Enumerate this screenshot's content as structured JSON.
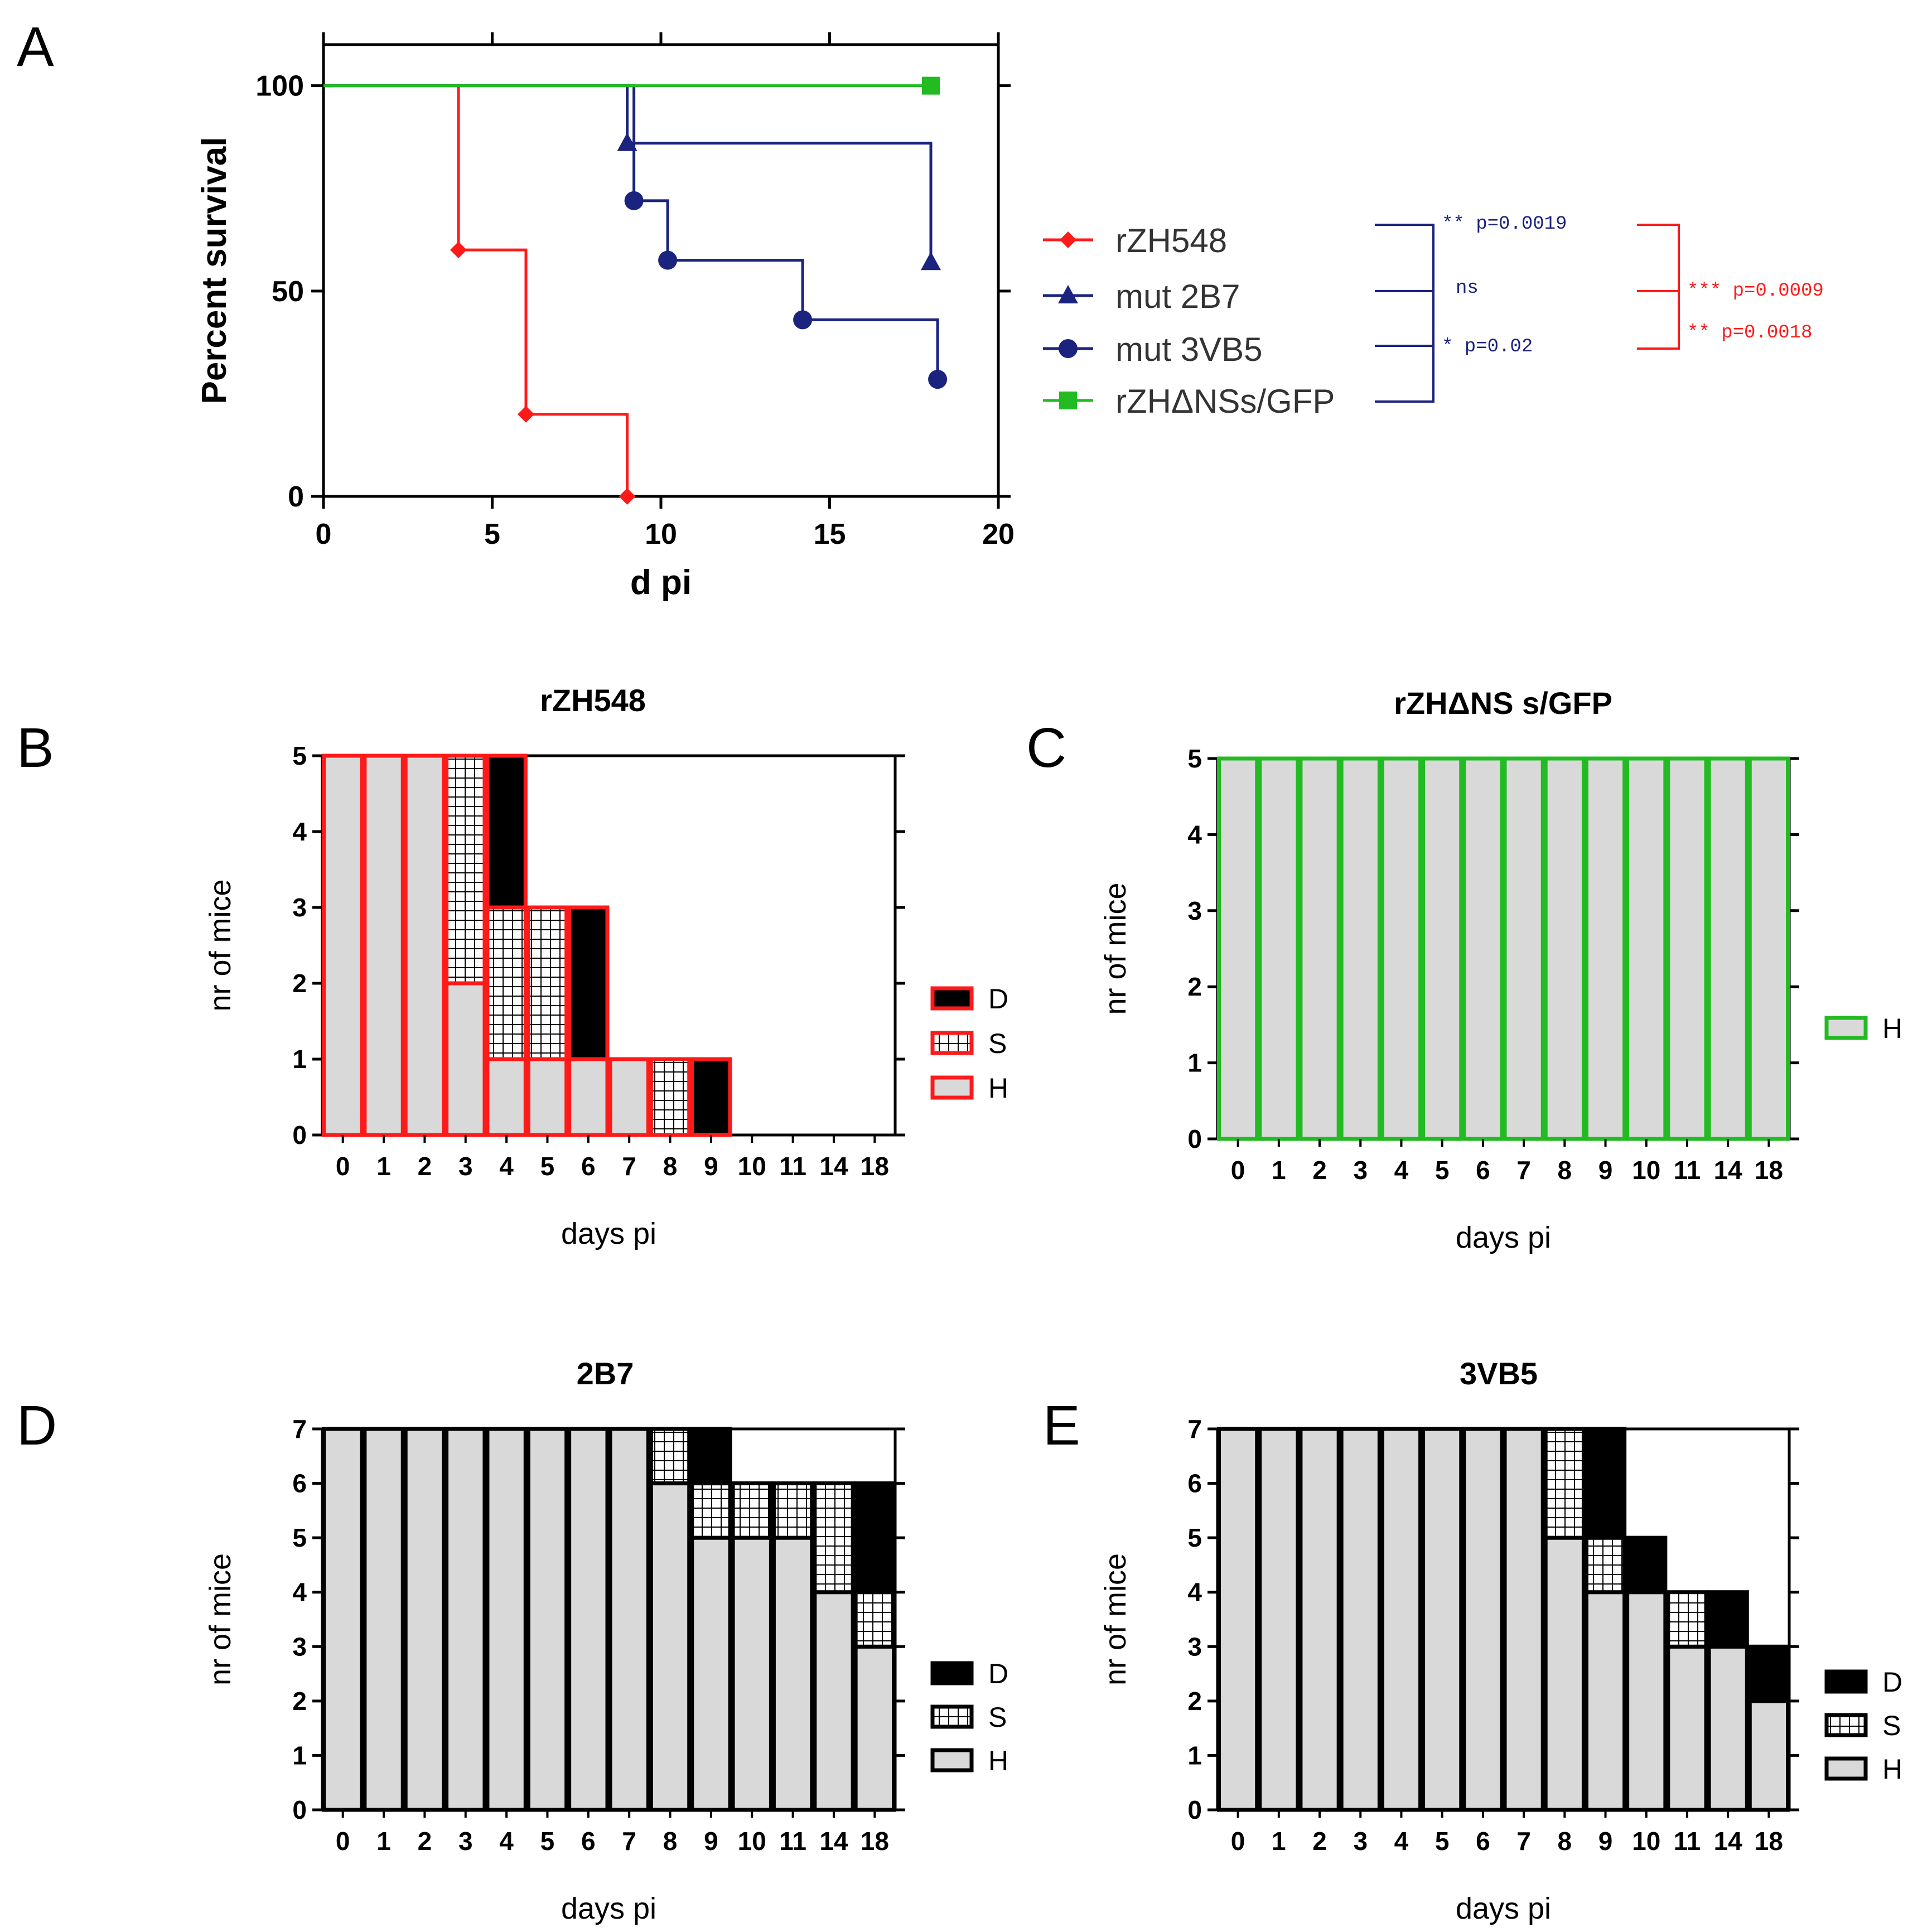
{
  "panel_labels": {
    "A": "A",
    "B": "B",
    "C": "C",
    "D": "D",
    "E": "E"
  },
  "colors": {
    "red": "#ff1a1a",
    "navy": "#1a237e",
    "green": "#22bb22",
    "gray": "#d9d9d9",
    "black": "#000000"
  },
  "chart_data": [
    {
      "panel": "A",
      "type": "line",
      "title": "",
      "xlabel": "d pi",
      "ylabel": "Percent survival",
      "xlim": [
        0,
        20
      ],
      "ylim": [
        0,
        110
      ],
      "xticks": [
        0,
        5,
        10,
        15,
        20
      ],
      "yticks": [
        0,
        50,
        100
      ],
      "series": [
        {
          "name": "rZH548",
          "color": "#ff1a1a",
          "marker": "diamond",
          "steps": [
            [
              0,
              100
            ],
            [
              4,
              100
            ],
            [
              4,
              60
            ],
            [
              6,
              60
            ],
            [
              6,
              20
            ],
            [
              9,
              20
            ],
            [
              9,
              0
            ]
          ],
          "points": [
            [
              4,
              60
            ],
            [
              6,
              20
            ],
            [
              9,
              0
            ]
          ]
        },
        {
          "name": "mut 2B7",
          "color": "#1a237e",
          "marker": "triangle",
          "steps": [
            [
              0,
              100
            ],
            [
              9,
              100
            ],
            [
              9,
              86
            ],
            [
              18,
              86
            ],
            [
              18,
              57
            ]
          ],
          "points": [
            [
              9,
              86
            ],
            [
              18,
              57
            ]
          ]
        },
        {
          "name": "mut 3VB5",
          "color": "#1a237e",
          "marker": "circle",
          "steps": [
            [
              0,
              100
            ],
            [
              9.2,
              100
            ],
            [
              9.2,
              72
            ],
            [
              10.2,
              72
            ],
            [
              10.2,
              57.5
            ],
            [
              14.2,
              57.5
            ],
            [
              14.2,
              43
            ],
            [
              18.2,
              43
            ],
            [
              18.2,
              28.5
            ]
          ],
          "points": [
            [
              9.2,
              72
            ],
            [
              10.2,
              57.5
            ],
            [
              14.2,
              43
            ],
            [
              18.2,
              28.5
            ]
          ]
        },
        {
          "name": "rZHΔNSs/GFP",
          "color": "#22bb22",
          "marker": "square",
          "steps": [
            [
              0,
              100
            ],
            [
              18,
              100
            ]
          ],
          "points": [
            [
              18,
              100
            ]
          ]
        }
      ],
      "stats": {
        "navy": [
          {
            "label": "** p=0.0019"
          },
          {
            "label": "ns"
          },
          {
            "label": "*  p=0.02"
          }
        ],
        "red": [
          {
            "label": "*** p=0.0009"
          },
          {
            "label": "**  p=0.0018"
          }
        ]
      }
    },
    {
      "panel": "B",
      "type": "bar",
      "title": "rZH548",
      "xlabel": "days pi",
      "ylabel": "nr of mice",
      "ylim": [
        0,
        5
      ],
      "yticks": [
        0,
        1,
        2,
        3,
        4,
        5
      ],
      "edge_color": "#ff1a1a",
      "categories": [
        "0",
        "1",
        "2",
        "3",
        "4",
        "5",
        "6",
        "7",
        "8",
        "9",
        "10",
        "11",
        "14",
        "18"
      ],
      "series": [
        {
          "name": "H",
          "values": [
            5,
            5,
            5,
            2,
            1,
            1,
            1,
            1,
            0,
            0,
            0,
            0,
            0,
            0
          ]
        },
        {
          "name": "S",
          "values": [
            0,
            0,
            0,
            3,
            2,
            2,
            0,
            0,
            1,
            0,
            0,
            0,
            0,
            0
          ]
        },
        {
          "name": "D",
          "values": [
            0,
            0,
            0,
            0,
            2,
            0,
            2,
            0,
            0,
            1,
            0,
            0,
            0,
            0
          ]
        }
      ],
      "legend": [
        "D",
        "S",
        "H"
      ]
    },
    {
      "panel": "C",
      "type": "bar",
      "title": "rZHΔNS s/GFP",
      "xlabel": "days pi",
      "ylabel": "nr of mice",
      "ylim": [
        0,
        5
      ],
      "yticks": [
        0,
        1,
        2,
        3,
        4,
        5
      ],
      "edge_color": "#22bb22",
      "categories": [
        "0",
        "1",
        "2",
        "3",
        "4",
        "5",
        "6",
        "7",
        "8",
        "9",
        "10",
        "11",
        "14",
        "18"
      ],
      "series": [
        {
          "name": "H",
          "values": [
            5,
            5,
            5,
            5,
            5,
            5,
            5,
            5,
            5,
            5,
            5,
            5,
            5,
            5
          ]
        }
      ],
      "legend": [
        "H"
      ]
    },
    {
      "panel": "D",
      "type": "bar",
      "title": "2B7",
      "xlabel": "days pi",
      "ylabel": "nr of mice",
      "ylim": [
        0,
        7
      ],
      "yticks": [
        0,
        1,
        2,
        3,
        4,
        5,
        6,
        7
      ],
      "edge_color": "#000000",
      "categories": [
        "0",
        "1",
        "2",
        "3",
        "4",
        "5",
        "6",
        "7",
        "8",
        "9",
        "10",
        "11",
        "14",
        "18"
      ],
      "series": [
        {
          "name": "H",
          "values": [
            7,
            7,
            7,
            7,
            7,
            7,
            7,
            7,
            6,
            5,
            5,
            5,
            4,
            3
          ]
        },
        {
          "name": "S",
          "values": [
            0,
            0,
            0,
            0,
            0,
            0,
            0,
            0,
            1,
            1,
            1,
            1,
            2,
            1
          ]
        },
        {
          "name": "D",
          "values": [
            0,
            0,
            0,
            0,
            0,
            0,
            0,
            0,
            0,
            1,
            0,
            0,
            0,
            2
          ]
        }
      ],
      "legend": [
        "D",
        "S",
        "H"
      ]
    },
    {
      "panel": "E",
      "type": "bar",
      "title": "3VB5",
      "xlabel": "days pi",
      "ylabel": "nr of mice",
      "ylim": [
        0,
        7
      ],
      "yticks": [
        0,
        1,
        2,
        3,
        4,
        5,
        6,
        7
      ],
      "edge_color": "#000000",
      "categories": [
        "0",
        "1",
        "2",
        "3",
        "4",
        "5",
        "6",
        "7",
        "8",
        "9",
        "10",
        "11",
        "14",
        "18"
      ],
      "series": [
        {
          "name": "H",
          "values": [
            7,
            7,
            7,
            7,
            7,
            7,
            7,
            7,
            5,
            4,
            4,
            3,
            3,
            2
          ]
        },
        {
          "name": "S",
          "values": [
            0,
            0,
            0,
            0,
            0,
            0,
            0,
            0,
            2,
            1,
            0,
            1,
            0,
            0
          ]
        },
        {
          "name": "D",
          "values": [
            0,
            0,
            0,
            0,
            0,
            0,
            0,
            0,
            0,
            2,
            1,
            0,
            1,
            1
          ]
        }
      ],
      "legend": [
        "D",
        "S",
        "H"
      ]
    }
  ]
}
